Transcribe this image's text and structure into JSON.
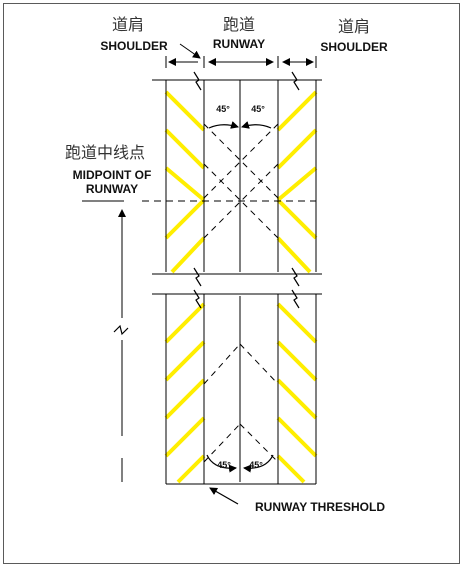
{
  "labels": {
    "shoulder_left_cn": "道肩",
    "shoulder_left_en": "SHOULDER",
    "runway_cn": "跑道",
    "runway_en": "RUNWAY",
    "shoulder_right_cn": "道肩",
    "shoulder_right_en": "SHOULDER",
    "midpoint_cn": "跑道中线点",
    "midpoint_en_line1": "MIDPOINT OF",
    "midpoint_en_line2": "RUNWAY",
    "threshold_en": "RUNWAY THRESHOLD"
  },
  "angles": {
    "upper_left": "45°",
    "upper_right": "45°",
    "lower_left": "45°",
    "lower_right": "45°"
  },
  "colors": {
    "stripe": "#ffee00",
    "line": "#000000",
    "background": "#ffffff"
  }
}
